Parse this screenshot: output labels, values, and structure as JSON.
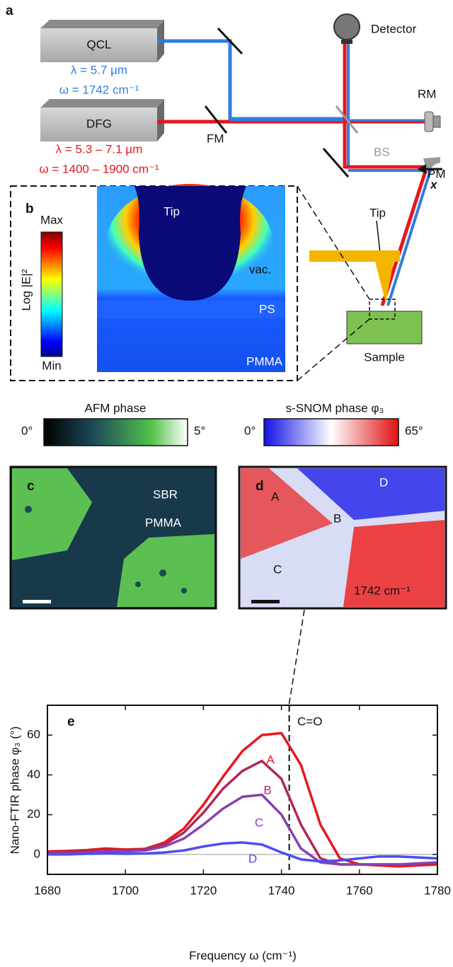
{
  "panel_a": {
    "label": "a",
    "qcl": "QCL",
    "qcl_lambda": "λ = 5.7 µm",
    "qcl_omega": "ω = 1742 cm⁻¹",
    "dfg": "DFG",
    "dfg_lambda": "λ = 5.3 – 7.1 µm",
    "dfg_omega": "ω = 1400 – 1900 cm⁻¹",
    "detector": "Detector",
    "rm": "RM",
    "fm": "FM",
    "bs": "BS",
    "x": "x",
    "pm": "PM",
    "tip": "Tip",
    "sample": "Sample"
  },
  "panel_b": {
    "label": "b",
    "colorbar_title": "Log |E|²",
    "max": "Max",
    "min": "Min",
    "tip": "Tip",
    "vac": "vac.",
    "ps": "PS",
    "pmma": "PMMA"
  },
  "panel_c": {
    "label": "c",
    "colorbar_title": "AFM phase",
    "colorbar_min": "0°",
    "colorbar_max": "5°",
    "sbr": "SBR",
    "pmma": "PMMA"
  },
  "panel_d": {
    "label": "d",
    "colorbar_title": "s-SNOM phase φ₃",
    "colorbar_min": "0°",
    "colorbar_max": "65°",
    "points": [
      "A",
      "B",
      "C",
      "D"
    ],
    "frequency": "1742 cm⁻¹"
  },
  "chart_data": {
    "type": "line",
    "label": "e",
    "xlabel": "Frequency ω (cm⁻¹)",
    "ylabel": "Nano-FTIR phase φ₃ (°)",
    "annotation": "C=O",
    "vline": 1742,
    "xlim": [
      1680,
      1780
    ],
    "ylim": [
      -10,
      75
    ],
    "xticks": [
      1680,
      1700,
      1720,
      1740,
      1760,
      1780
    ],
    "yticks": [
      0,
      20,
      40,
      60
    ],
    "x": [
      1680,
      1685,
      1690,
      1695,
      1700,
      1705,
      1710,
      1715,
      1720,
      1725,
      1730,
      1735,
      1740,
      1745,
      1750,
      1755,
      1760,
      1765,
      1770,
      1775,
      1780
    ],
    "series": [
      {
        "name": "A",
        "color": "#e8161c",
        "values": [
          1.5,
          1.8,
          2.2,
          3,
          2.5,
          2.8,
          6,
          13,
          25,
          39,
          52,
          60,
          61,
          45,
          15,
          -2,
          -5,
          -5.5,
          -6,
          -5.5,
          -5
        ]
      },
      {
        "name": "B",
        "color": "#b0285a",
        "values": [
          1,
          1.2,
          1.5,
          2,
          2,
          2.5,
          5,
          11,
          21,
          33,
          42,
          47,
          38,
          15,
          -2,
          -5,
          -5,
          -5,
          -5,
          -5,
          -4
        ]
      },
      {
        "name": "C",
        "color": "#8a3fb0",
        "values": [
          0.5,
          0.8,
          1,
          1.5,
          1.5,
          2,
          4,
          8,
          15,
          23,
          29,
          30,
          20,
          3,
          -4,
          -5,
          -5,
          -5,
          -5,
          -4.5,
          -4
        ]
      },
      {
        "name": "D",
        "color": "#4a4ef0",
        "values": [
          0,
          0,
          0.3,
          0.5,
          0.3,
          0.5,
          1,
          2,
          4,
          5.5,
          6,
          5,
          1,
          -2.5,
          -3.5,
          -3,
          -2,
          -1,
          -1,
          -1.5,
          -2
        ]
      }
    ]
  }
}
